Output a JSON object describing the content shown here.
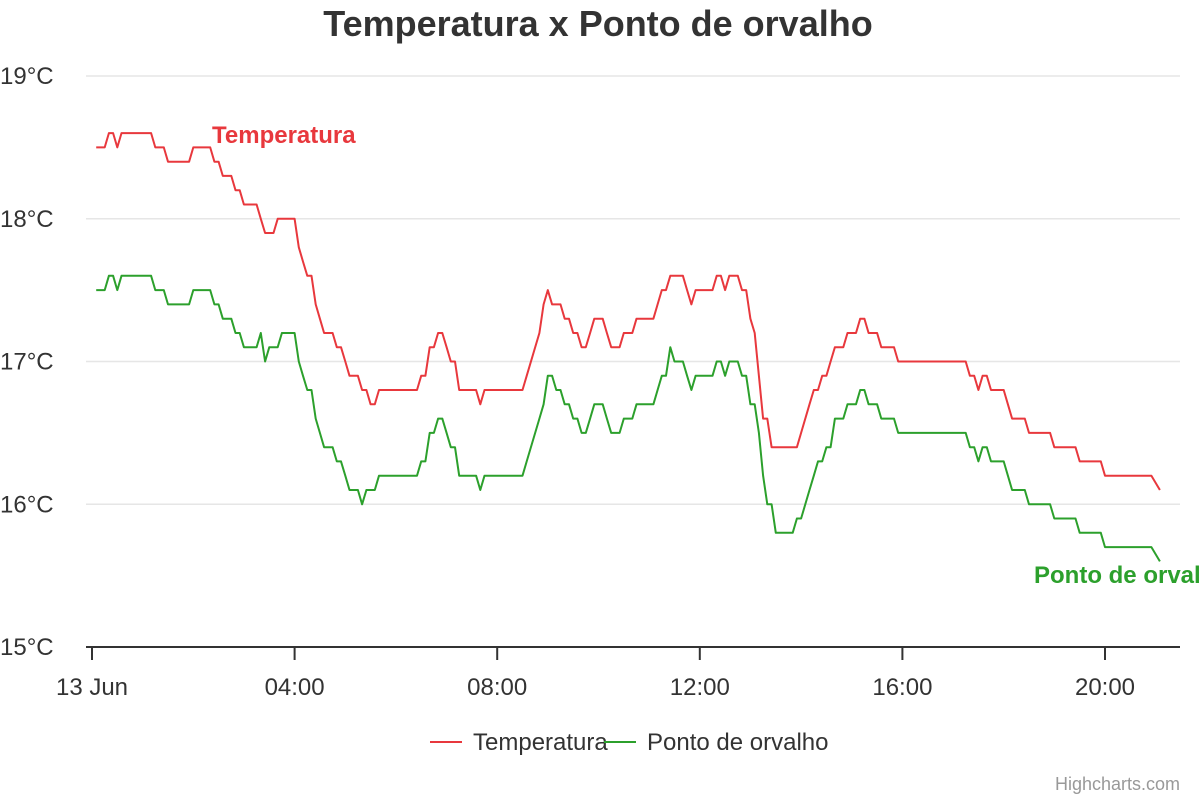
{
  "colors": {
    "temperatura": "#e8383d",
    "ponto_de_orvalho": "#2ca02c"
  },
  "credits": "Highcharts.com",
  "chart_data": {
    "type": "line",
    "title": "Temperatura x Ponto de orvalho",
    "xlabel": "",
    "ylabel": "",
    "ylim": [
      15,
      19
    ],
    "xlim": [
      "2023-06-13 00:00",
      "2023-06-13 21:20"
    ],
    "grid": true,
    "legend_position": "bottom-center",
    "y_tick_labels": [
      "15°C",
      "16°C",
      "17°C",
      "18°C",
      "19°C"
    ],
    "x_tick_labels": [
      "13 Jun",
      "04:00",
      "08:00",
      "12:00",
      "16:00",
      "20:00"
    ],
    "series": [
      {
        "name": "Temperatura",
        "color": "#e8383d",
        "label": "Temperatura",
        "points": [
          [
            "00:05",
            18.5
          ],
          [
            "00:15",
            18.5
          ],
          [
            "00:20",
            18.6
          ],
          [
            "00:25",
            18.6
          ],
          [
            "00:30",
            18.5
          ],
          [
            "00:35",
            18.6
          ],
          [
            "01:10",
            18.6
          ],
          [
            "01:15",
            18.5
          ],
          [
            "01:25",
            18.5
          ],
          [
            "01:30",
            18.4
          ],
          [
            "01:55",
            18.4
          ],
          [
            "02:00",
            18.5
          ],
          [
            "02:20",
            18.5
          ],
          [
            "02:25",
            18.4
          ],
          [
            "02:30",
            18.4
          ],
          [
            "02:35",
            18.3
          ],
          [
            "02:45",
            18.3
          ],
          [
            "02:50",
            18.2
          ],
          [
            "02:55",
            18.2
          ],
          [
            "03:00",
            18.1
          ],
          [
            "03:15",
            18.1
          ],
          [
            "03:20",
            18.0
          ],
          [
            "03:25",
            17.9
          ],
          [
            "03:35",
            17.9
          ],
          [
            "03:40",
            18.0
          ],
          [
            "04:00",
            18.0
          ],
          [
            "04:05",
            17.8
          ],
          [
            "04:10",
            17.7
          ],
          [
            "04:15",
            17.6
          ],
          [
            "04:20",
            17.6
          ],
          [
            "04:25",
            17.4
          ],
          [
            "04:30",
            17.3
          ],
          [
            "04:35",
            17.2
          ],
          [
            "04:45",
            17.2
          ],
          [
            "04:50",
            17.1
          ],
          [
            "04:55",
            17.1
          ],
          [
            "05:00",
            17.0
          ],
          [
            "05:05",
            16.9
          ],
          [
            "05:15",
            16.9
          ],
          [
            "05:20",
            16.8
          ],
          [
            "05:25",
            16.8
          ],
          [
            "05:30",
            16.7
          ],
          [
            "05:35",
            16.7
          ],
          [
            "05:40",
            16.8
          ],
          [
            "06:25",
            16.8
          ],
          [
            "06:30",
            16.9
          ],
          [
            "06:35",
            16.9
          ],
          [
            "06:40",
            17.1
          ],
          [
            "06:45",
            17.1
          ],
          [
            "06:50",
            17.2
          ],
          [
            "06:55",
            17.2
          ],
          [
            "07:00",
            17.1
          ],
          [
            "07:05",
            17.0
          ],
          [
            "07:10",
            17.0
          ],
          [
            "07:15",
            16.8
          ],
          [
            "07:35",
            16.8
          ],
          [
            "07:40",
            16.7
          ],
          [
            "07:45",
            16.8
          ],
          [
            "08:30",
            16.8
          ],
          [
            "08:35",
            16.9
          ],
          [
            "08:50",
            17.2
          ],
          [
            "08:55",
            17.4
          ],
          [
            "09:00",
            17.5
          ],
          [
            "09:05",
            17.4
          ],
          [
            "09:15",
            17.4
          ],
          [
            "09:20",
            17.3
          ],
          [
            "09:25",
            17.3
          ],
          [
            "09:30",
            17.2
          ],
          [
            "09:35",
            17.2
          ],
          [
            "09:40",
            17.1
          ],
          [
            "09:45",
            17.1
          ],
          [
            "09:50",
            17.2
          ],
          [
            "09:55",
            17.3
          ],
          [
            "10:05",
            17.3
          ],
          [
            "10:10",
            17.2
          ],
          [
            "10:15",
            17.1
          ],
          [
            "10:25",
            17.1
          ],
          [
            "10:30",
            17.2
          ],
          [
            "10:40",
            17.2
          ],
          [
            "10:45",
            17.3
          ],
          [
            "11:05",
            17.3
          ],
          [
            "11:10",
            17.4
          ],
          [
            "11:15",
            17.5
          ],
          [
            "11:20",
            17.5
          ],
          [
            "11:25",
            17.6
          ],
          [
            "11:40",
            17.6
          ],
          [
            "11:45",
            17.5
          ],
          [
            "11:50",
            17.4
          ],
          [
            "11:55",
            17.5
          ],
          [
            "12:15",
            17.5
          ],
          [
            "12:20",
            17.6
          ],
          [
            "12:25",
            17.6
          ],
          [
            "12:30",
            17.5
          ],
          [
            "12:35",
            17.6
          ],
          [
            "12:45",
            17.6
          ],
          [
            "12:50",
            17.5
          ],
          [
            "12:55",
            17.5
          ],
          [
            "13:00",
            17.3
          ],
          [
            "13:05",
            17.2
          ],
          [
            "13:10",
            16.9
          ],
          [
            "13:15",
            16.6
          ],
          [
            "13:20",
            16.6
          ],
          [
            "13:25",
            16.4
          ],
          [
            "13:50",
            16.4
          ],
          [
            "13:55",
            16.4
          ],
          [
            "14:00",
            16.5
          ],
          [
            "14:10",
            16.7
          ],
          [
            "14:15",
            16.8
          ],
          [
            "14:20",
            16.8
          ],
          [
            "14:25",
            16.9
          ],
          [
            "14:30",
            16.9
          ],
          [
            "14:35",
            17.0
          ],
          [
            "14:40",
            17.1
          ],
          [
            "14:50",
            17.1
          ],
          [
            "14:55",
            17.2
          ],
          [
            "15:05",
            17.2
          ],
          [
            "15:10",
            17.3
          ],
          [
            "15:15",
            17.3
          ],
          [
            "15:20",
            17.2
          ],
          [
            "15:30",
            17.2
          ],
          [
            "15:35",
            17.1
          ],
          [
            "15:50",
            17.1
          ],
          [
            "15:55",
            17.0
          ],
          [
            "17:15",
            17.0
          ],
          [
            "17:20",
            16.9
          ],
          [
            "17:25",
            16.9
          ],
          [
            "17:30",
            16.8
          ],
          [
            "17:35",
            16.9
          ],
          [
            "17:40",
            16.9
          ],
          [
            "17:45",
            16.8
          ],
          [
            "18:00",
            16.8
          ],
          [
            "18:05",
            16.7
          ],
          [
            "18:10",
            16.6
          ],
          [
            "18:25",
            16.6
          ],
          [
            "18:30",
            16.5
          ],
          [
            "18:55",
            16.5
          ],
          [
            "19:00",
            16.4
          ],
          [
            "19:25",
            16.4
          ],
          [
            "19:30",
            16.3
          ],
          [
            "19:55",
            16.3
          ],
          [
            "20:00",
            16.2
          ],
          [
            "20:45",
            16.2
          ],
          [
            "20:55",
            16.2
          ],
          [
            "21:05",
            16.1
          ]
        ]
      },
      {
        "name": "Ponto de orvalho",
        "color": "#2ca02c",
        "label": "Ponto de orvalho",
        "points": [
          [
            "00:05",
            17.5
          ],
          [
            "00:15",
            17.5
          ],
          [
            "00:20",
            17.6
          ],
          [
            "00:25",
            17.6
          ],
          [
            "00:30",
            17.5
          ],
          [
            "00:35",
            17.6
          ],
          [
            "01:10",
            17.6
          ],
          [
            "01:15",
            17.5
          ],
          [
            "01:25",
            17.5
          ],
          [
            "01:30",
            17.4
          ],
          [
            "01:55",
            17.4
          ],
          [
            "02:00",
            17.5
          ],
          [
            "02:20",
            17.5
          ],
          [
            "02:25",
            17.4
          ],
          [
            "02:30",
            17.4
          ],
          [
            "02:35",
            17.3
          ],
          [
            "02:45",
            17.3
          ],
          [
            "02:50",
            17.2
          ],
          [
            "02:55",
            17.2
          ],
          [
            "03:00",
            17.1
          ],
          [
            "03:15",
            17.1
          ],
          [
            "03:20",
            17.2
          ],
          [
            "03:25",
            17.0
          ],
          [
            "03:30",
            17.1
          ],
          [
            "03:40",
            17.1
          ],
          [
            "03:45",
            17.2
          ],
          [
            "04:00",
            17.2
          ],
          [
            "04:05",
            17.0
          ],
          [
            "04:10",
            16.9
          ],
          [
            "04:15",
            16.8
          ],
          [
            "04:20",
            16.8
          ],
          [
            "04:25",
            16.6
          ],
          [
            "04:30",
            16.5
          ],
          [
            "04:35",
            16.4
          ],
          [
            "04:45",
            16.4
          ],
          [
            "04:50",
            16.3
          ],
          [
            "04:55",
            16.3
          ],
          [
            "05:00",
            16.2
          ],
          [
            "05:05",
            16.1
          ],
          [
            "05:15",
            16.1
          ],
          [
            "05:20",
            16.0
          ],
          [
            "05:25",
            16.1
          ],
          [
            "05:35",
            16.1
          ],
          [
            "05:40",
            16.2
          ],
          [
            "06:25",
            16.2
          ],
          [
            "06:30",
            16.3
          ],
          [
            "06:35",
            16.3
          ],
          [
            "06:40",
            16.5
          ],
          [
            "06:45",
            16.5
          ],
          [
            "06:50",
            16.6
          ],
          [
            "06:55",
            16.6
          ],
          [
            "07:00",
            16.5
          ],
          [
            "07:05",
            16.4
          ],
          [
            "07:10",
            16.4
          ],
          [
            "07:15",
            16.2
          ],
          [
            "07:35",
            16.2
          ],
          [
            "07:40",
            16.1
          ],
          [
            "07:45",
            16.2
          ],
          [
            "08:30",
            16.2
          ],
          [
            "08:35",
            16.3
          ],
          [
            "08:50",
            16.6
          ],
          [
            "08:55",
            16.7
          ],
          [
            "09:00",
            16.9
          ],
          [
            "09:05",
            16.9
          ],
          [
            "09:10",
            16.8
          ],
          [
            "09:15",
            16.8
          ],
          [
            "09:20",
            16.7
          ],
          [
            "09:25",
            16.7
          ],
          [
            "09:30",
            16.6
          ],
          [
            "09:35",
            16.6
          ],
          [
            "09:40",
            16.5
          ],
          [
            "09:45",
            16.5
          ],
          [
            "09:50",
            16.6
          ],
          [
            "09:55",
            16.7
          ],
          [
            "10:05",
            16.7
          ],
          [
            "10:10",
            16.6
          ],
          [
            "10:15",
            16.5
          ],
          [
            "10:25",
            16.5
          ],
          [
            "10:30",
            16.6
          ],
          [
            "10:40",
            16.6
          ],
          [
            "10:45",
            16.7
          ],
          [
            "11:05",
            16.7
          ],
          [
            "11:10",
            16.8
          ],
          [
            "11:15",
            16.9
          ],
          [
            "11:20",
            16.9
          ],
          [
            "11:25",
            17.1
          ],
          [
            "11:30",
            17.0
          ],
          [
            "11:40",
            17.0
          ],
          [
            "11:45",
            16.9
          ],
          [
            "11:50",
            16.8
          ],
          [
            "11:55",
            16.9
          ],
          [
            "12:15",
            16.9
          ],
          [
            "12:20",
            17.0
          ],
          [
            "12:25",
            17.0
          ],
          [
            "12:30",
            16.9
          ],
          [
            "12:35",
            17.0
          ],
          [
            "12:45",
            17.0
          ],
          [
            "12:50",
            16.9
          ],
          [
            "12:55",
            16.9
          ],
          [
            "13:00",
            16.7
          ],
          [
            "13:05",
            16.7
          ],
          [
            "13:10",
            16.5
          ],
          [
            "13:15",
            16.2
          ],
          [
            "13:20",
            16.0
          ],
          [
            "13:25",
            16.0
          ],
          [
            "13:30",
            15.8
          ],
          [
            "13:50",
            15.8
          ],
          [
            "13:55",
            15.9
          ],
          [
            "14:00",
            15.9
          ],
          [
            "14:10",
            16.1
          ],
          [
            "14:15",
            16.2
          ],
          [
            "14:20",
            16.3
          ],
          [
            "14:25",
            16.3
          ],
          [
            "14:30",
            16.4
          ],
          [
            "14:35",
            16.4
          ],
          [
            "14:40",
            16.6
          ],
          [
            "14:50",
            16.6
          ],
          [
            "14:55",
            16.7
          ],
          [
            "15:05",
            16.7
          ],
          [
            "15:10",
            16.8
          ],
          [
            "15:15",
            16.8
          ],
          [
            "15:20",
            16.7
          ],
          [
            "15:30",
            16.7
          ],
          [
            "15:35",
            16.6
          ],
          [
            "15:50",
            16.6
          ],
          [
            "15:55",
            16.5
          ],
          [
            "17:15",
            16.5
          ],
          [
            "17:20",
            16.4
          ],
          [
            "17:25",
            16.4
          ],
          [
            "17:30",
            16.3
          ],
          [
            "17:35",
            16.4
          ],
          [
            "17:40",
            16.4
          ],
          [
            "17:45",
            16.3
          ],
          [
            "18:00",
            16.3
          ],
          [
            "18:05",
            16.2
          ],
          [
            "18:10",
            16.1
          ],
          [
            "18:25",
            16.1
          ],
          [
            "18:30",
            16.0
          ],
          [
            "18:55",
            16.0
          ],
          [
            "19:00",
            15.9
          ],
          [
            "19:25",
            15.9
          ],
          [
            "19:30",
            15.8
          ],
          [
            "19:55",
            15.8
          ],
          [
            "20:00",
            15.7
          ],
          [
            "20:45",
            15.7
          ],
          [
            "20:55",
            15.7
          ],
          [
            "21:05",
            15.6
          ]
        ]
      }
    ]
  }
}
